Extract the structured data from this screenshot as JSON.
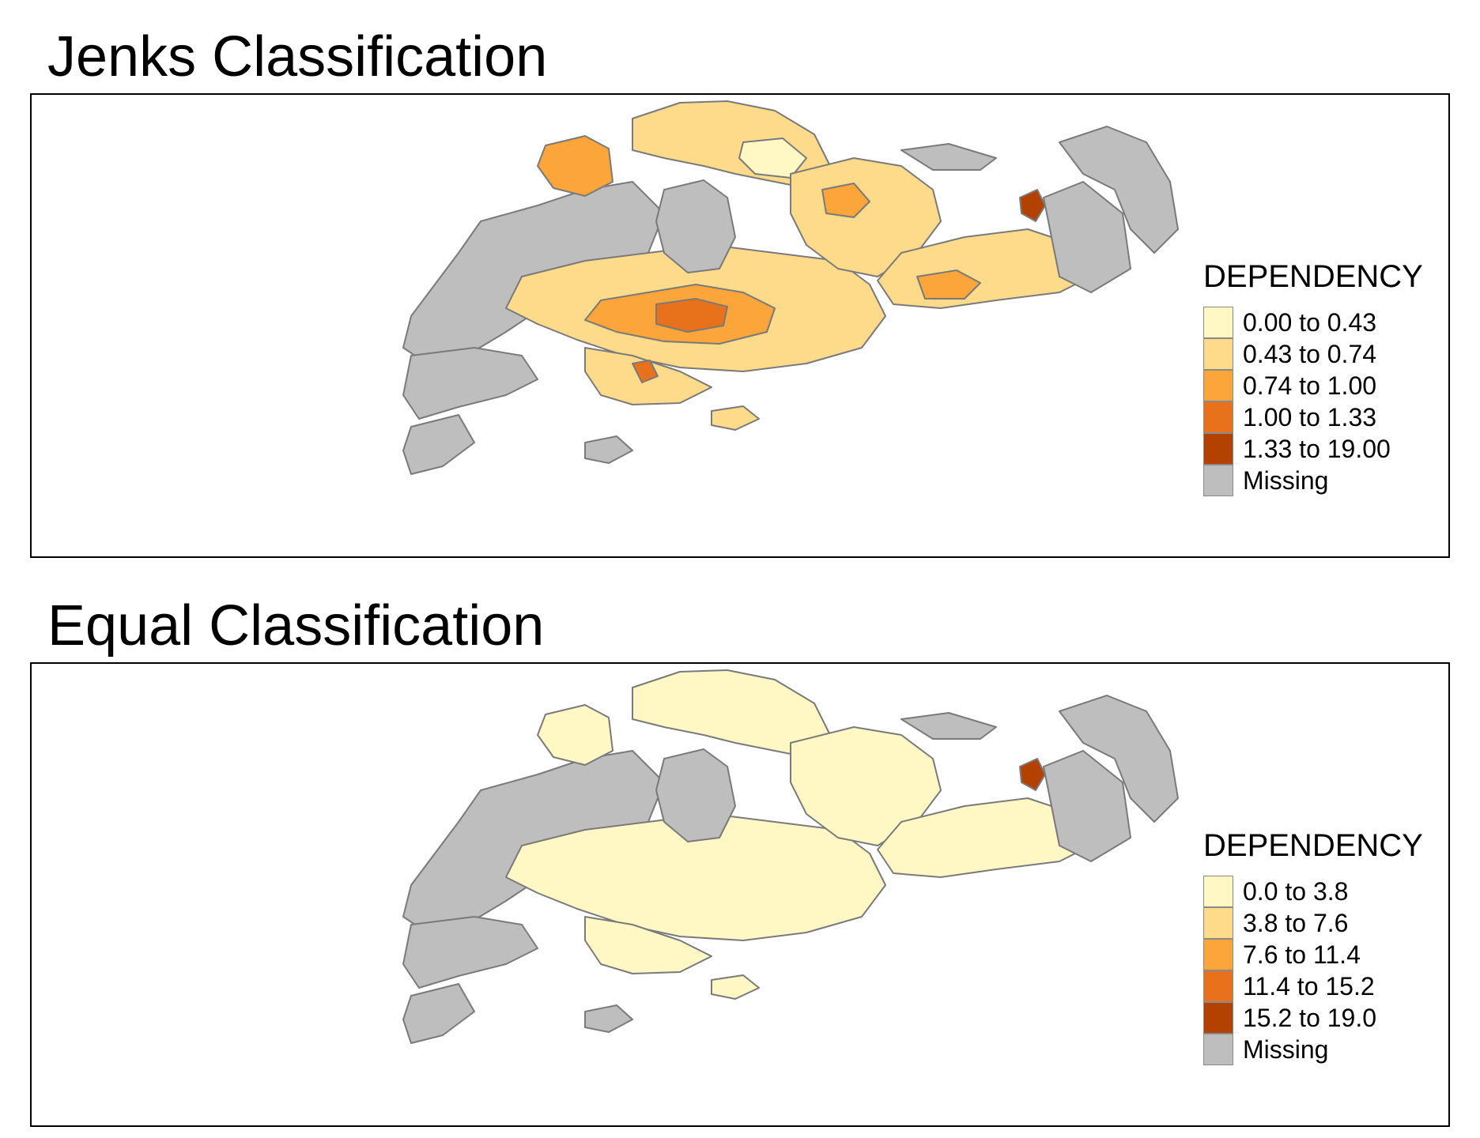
{
  "panels": [
    {
      "title": "Jenks Classification",
      "legend": {
        "title": "DEPENDENCY",
        "items": [
          {
            "label": "0.00 to 0.43",
            "color": "#fff7c4"
          },
          {
            "label": "0.43 to 0.74",
            "color": "#fedb8a"
          },
          {
            "label": "0.74 to 1.00",
            "color": "#fba53a"
          },
          {
            "label": "1.00 to 1.33",
            "color": "#e8711c"
          },
          {
            "label": "1.33 to 19.00",
            "color": "#b34100"
          },
          {
            "label": "Missing",
            "color": "#bebebe"
          }
        ]
      }
    },
    {
      "title": "Equal Classification",
      "legend": {
        "title": "DEPENDENCY",
        "items": [
          {
            "label": "0.0 to 3.8",
            "color": "#fff7c4"
          },
          {
            "label": "3.8 to 7.6",
            "color": "#fedb8a"
          },
          {
            "label": "7.6 to 11.4",
            "color": "#fba53a"
          },
          {
            "label": "11.4 to 15.2",
            "color": "#e8711c"
          },
          {
            "label": "15.2 to 19.0",
            "color": "#b34100"
          },
          {
            "label": "Missing",
            "color": "#bebebe"
          }
        ]
      }
    }
  ]
}
